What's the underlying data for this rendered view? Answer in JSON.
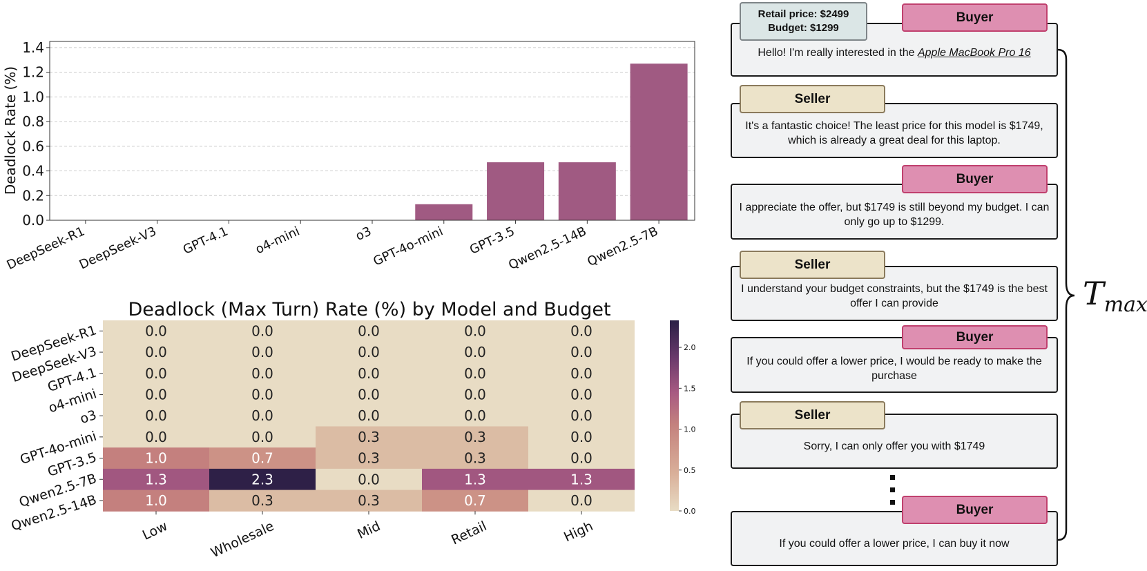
{
  "chart_data": [
    {
      "type": "bar",
      "ylabel": "Deadlock Rate (%)",
      "xlabel": "",
      "title": "",
      "ylim": [
        0,
        1.45
      ],
      "yticks": [
        "0.0",
        "0.2",
        "0.4",
        "0.6",
        "0.8",
        "1.0",
        "1.2",
        "1.4"
      ],
      "categories": [
        "DeepSeek-R1",
        "DeepSeek-V3",
        "GPT-4.1",
        "o4-mini",
        "o3",
        "GPT-4o-mini",
        "GPT-3.5",
        "Qwen2.5-14B",
        "Qwen2.5-7B"
      ],
      "values": [
        0,
        0,
        0,
        0,
        0,
        0.13,
        0.47,
        0.47,
        1.27
      ],
      "bar_color": "#a05a82",
      "grid": "horizontal dashed"
    },
    {
      "type": "heatmap",
      "title": "Deadlock (Max Turn) Rate (%) by Model and Budget",
      "columns": [
        "Low",
        "Wholesale",
        "Mid",
        "Retail",
        "High"
      ],
      "rows": [
        "DeepSeek-R1",
        "DeepSeek-V3",
        "GPT-4.1",
        "o4-mini",
        "o3",
        "GPT-4o-mini",
        "GPT-3.5",
        "Qwen2.5-7B",
        "Qwen2.5-14B"
      ],
      "values": [
        [
          0.0,
          0.0,
          0.0,
          0.0,
          0.0
        ],
        [
          0.0,
          0.0,
          0.0,
          0.0,
          0.0
        ],
        [
          0.0,
          0.0,
          0.0,
          0.0,
          0.0
        ],
        [
          0.0,
          0.0,
          0.0,
          0.0,
          0.0
        ],
        [
          0.0,
          0.0,
          0.0,
          0.0,
          0.0
        ],
        [
          0.0,
          0.0,
          0.3,
          0.3,
          0.0
        ],
        [
          1.0,
          0.7,
          0.3,
          0.3,
          0.0
        ],
        [
          1.3,
          2.3,
          0.0,
          1.3,
          1.3
        ],
        [
          1.0,
          0.3,
          0.3,
          0.7,
          0.0
        ]
      ],
      "labels": [
        [
          "0.0",
          "0.0",
          "0.0",
          "0.0",
          "0.0"
        ],
        [
          "0.0",
          "0.0",
          "0.0",
          "0.0",
          "0.0"
        ],
        [
          "0.0",
          "0.0",
          "0.0",
          "0.0",
          "0.0"
        ],
        [
          "0.0",
          "0.0",
          "0.0",
          "0.0",
          "0.0"
        ],
        [
          "0.0",
          "0.0",
          "0.0",
          "0.0",
          "0.0"
        ],
        [
          "0.0",
          "0.0",
          "0.3",
          "0.3",
          "0.0"
        ],
        [
          "1.0",
          "0.7",
          "0.3",
          "0.3",
          "0.0"
        ],
        [
          "1.3",
          "2.3",
          "0.0",
          "1.3",
          "1.3"
        ],
        [
          "1.0",
          "0.3",
          "0.3",
          "0.7",
          "0.0"
        ]
      ],
      "vmin": 0,
      "vmax": 2.33,
      "colorbar_ticks": [
        "0.0",
        "0.5",
        "1.0",
        "1.5",
        "2.0"
      ],
      "colorbar_values": [
        0,
        0.5,
        1.0,
        1.5,
        2.0
      ]
    }
  ],
  "dialog": {
    "prices": {
      "retail": "Retail price: $2499",
      "budget": "Budget: $1299"
    },
    "intro_prefix": "Hello! I'm really interested in the ",
    "product": "Apple MacBook Pro 16",
    "buyer_label": "Buyer",
    "seller_label": "Seller",
    "messages": [
      "It's a fantastic choice! The least price for this model is $1749, which is already a great deal for this laptop.",
      "I appreciate the offer, but $1749 is still beyond my budget. I can only go up to $1299.",
      "I understand your budget constraints, but the $1749 is the best offer I can provide",
      "If you could offer a lower price, I would be ready to make the purchase",
      "Sorry, I can only offer you with $1749",
      "If you could offer a lower price, I can buy it now"
    ],
    "tmax_main": "T",
    "tmax_sub": "max"
  }
}
